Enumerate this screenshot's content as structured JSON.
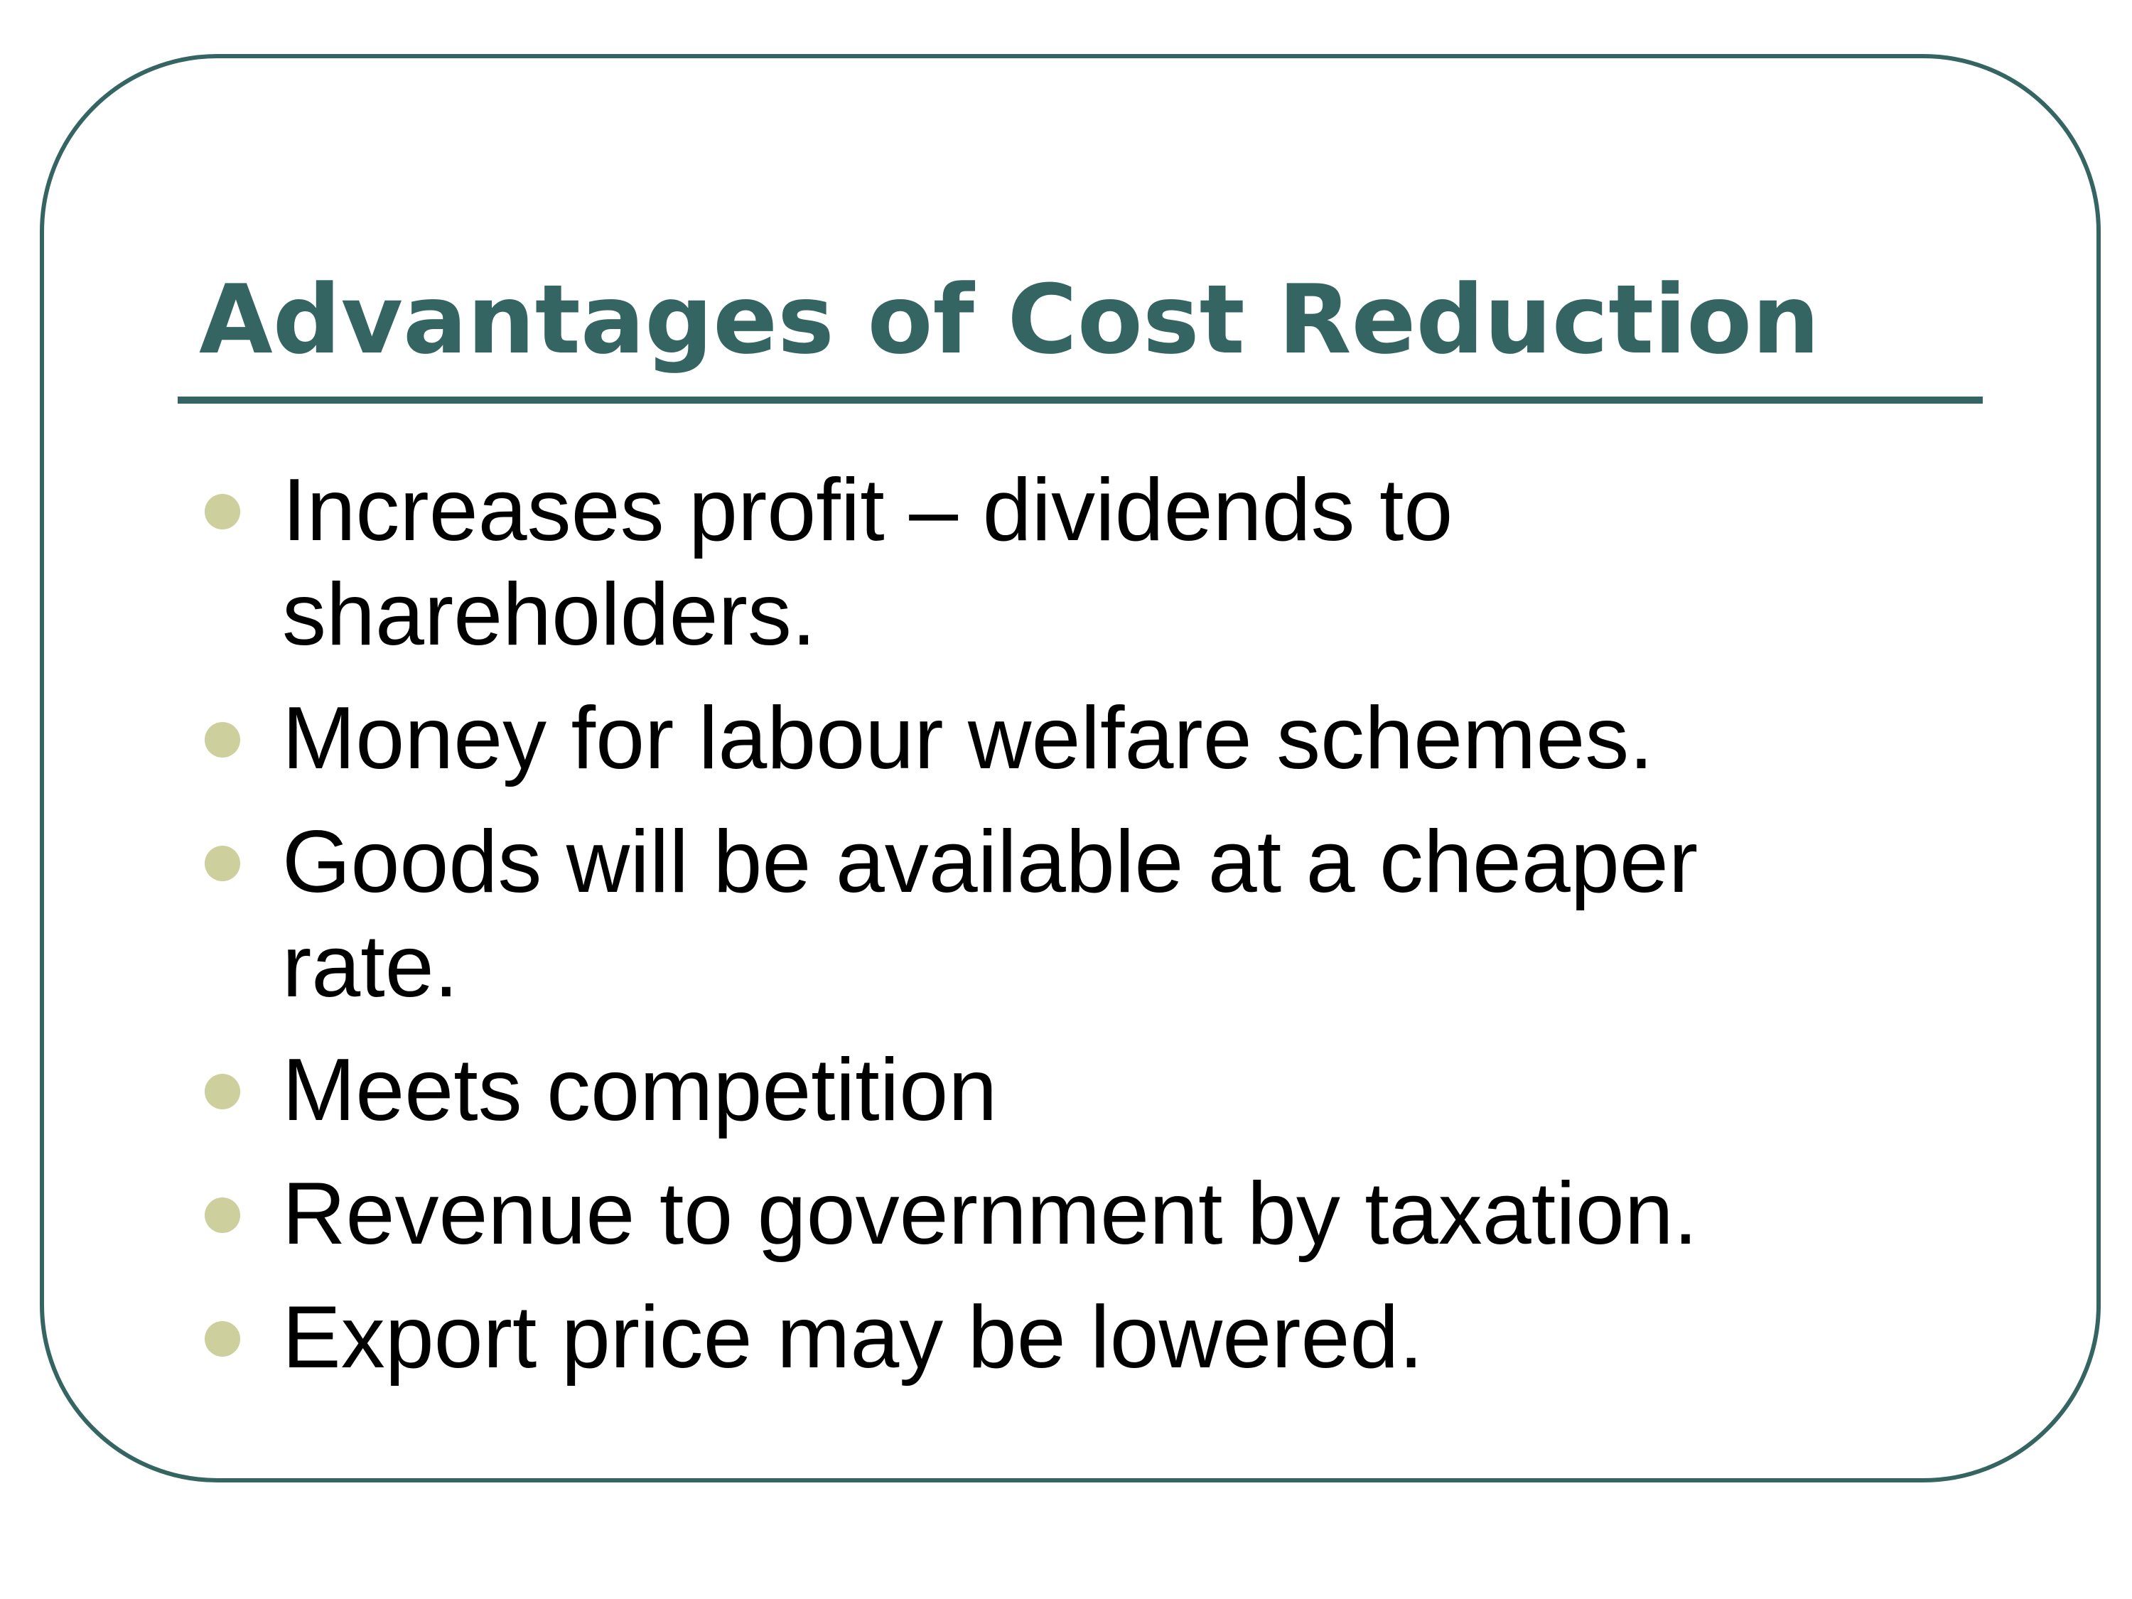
{
  "slide": {
    "title": "Advantages of Cost Reduction",
    "bullets": [
      "Increases profit – dividends to shareholders.",
      "Money for labour welfare schemes.",
      "Goods will be available at a cheaper rate.",
      "Meets competition",
      "Revenue to government by taxation.",
      "Export price may be lowered."
    ]
  },
  "colors": {
    "accent": "#356563",
    "bullet": "#CDCF9C",
    "text": "#000000",
    "background": "#FFFFFF"
  }
}
